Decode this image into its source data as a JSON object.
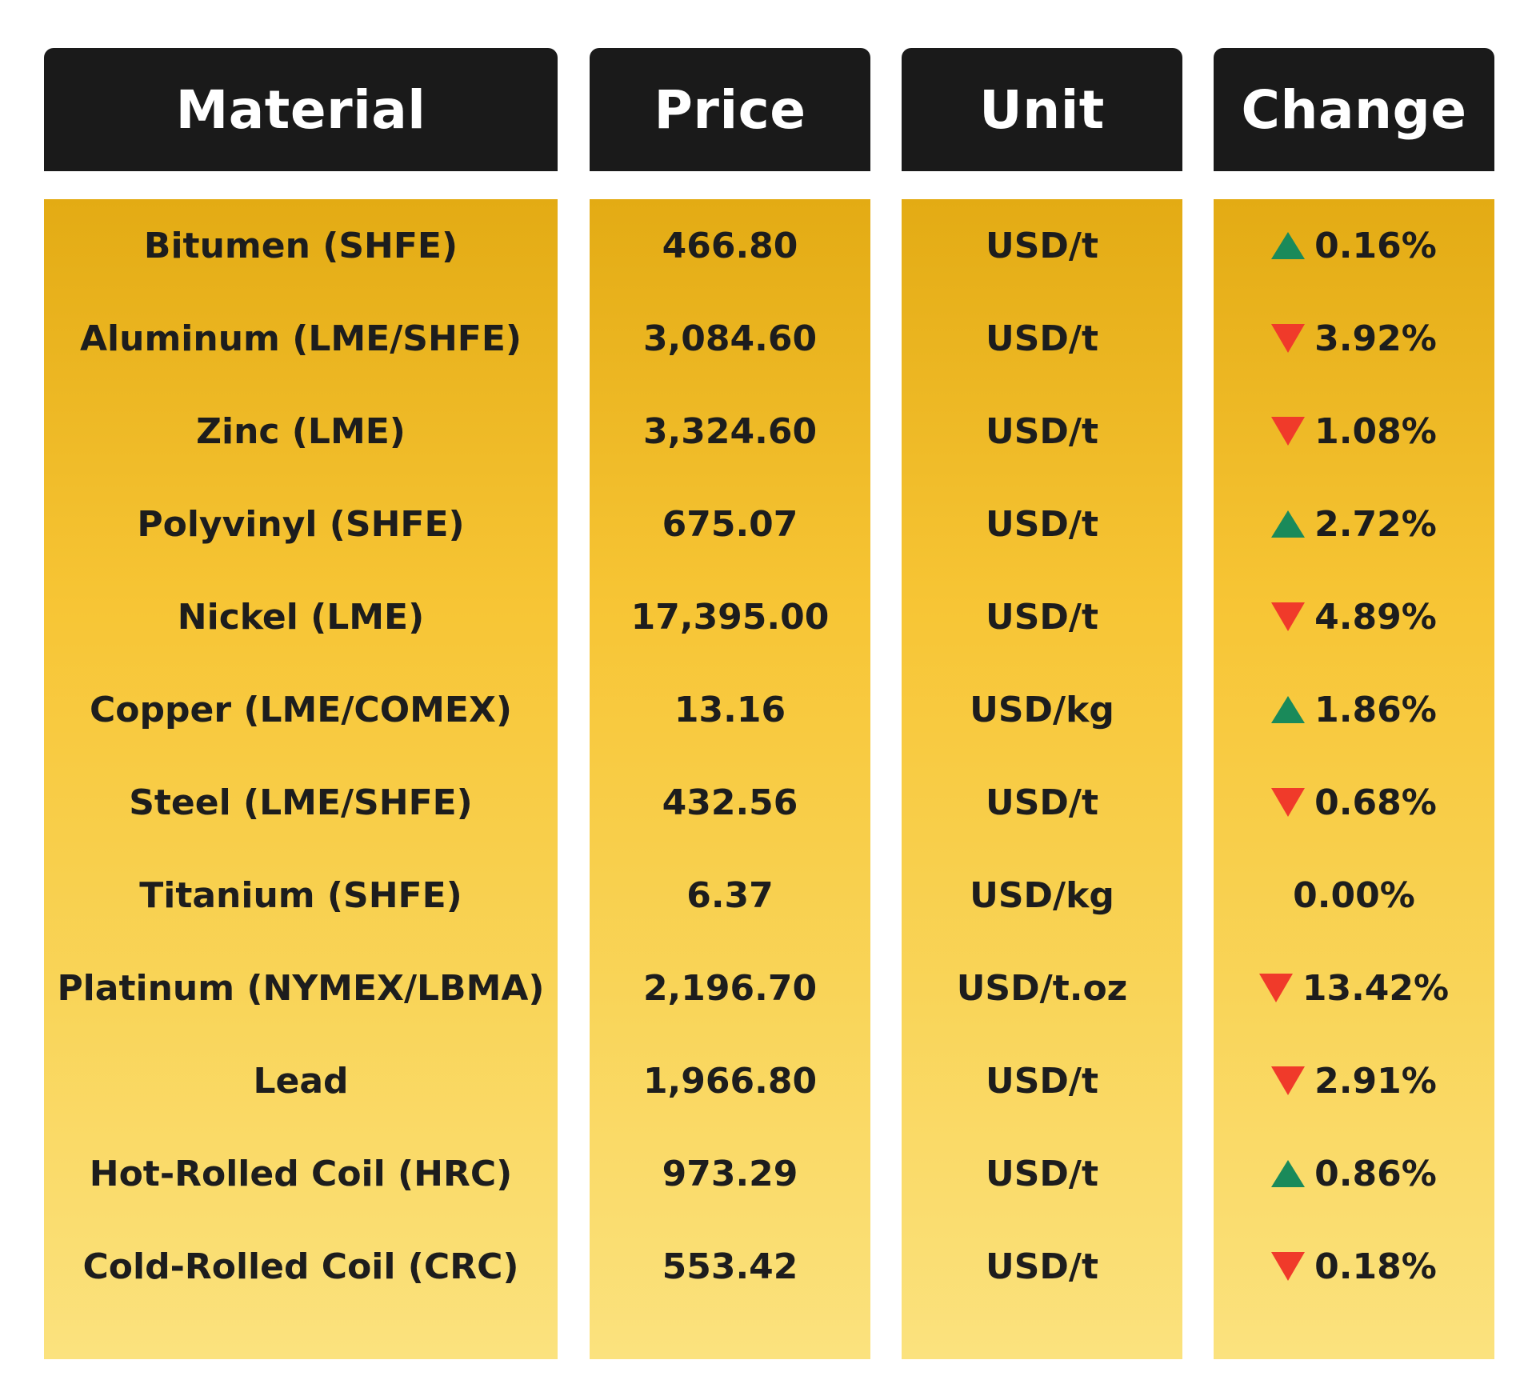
{
  "headers": {
    "material": "Material",
    "price": "Price",
    "unit": "Unit",
    "change": "Change"
  },
  "colors": {
    "header_bg": "#1a1a1a",
    "header_text": "#ffffff",
    "body_gradient_top": "#e3ab14",
    "body_gradient_bottom": "#fbe27e",
    "up": "#1a8a5a",
    "down": "#f03a2a"
  },
  "rows": [
    {
      "material": "Bitumen (SHFE)",
      "price": "466.80",
      "unit": "USD/t",
      "direction": "up",
      "change": "0.16%"
    },
    {
      "material": "Aluminum (LME/SHFE)",
      "price": "3,084.60",
      "unit": "USD/t",
      "direction": "down",
      "change": "3.92%"
    },
    {
      "material": "Zinc (LME)",
      "price": "3,324.60",
      "unit": "USD/t",
      "direction": "down",
      "change": "1.08%"
    },
    {
      "material": "Polyvinyl (SHFE)",
      "price": "675.07",
      "unit": "USD/t",
      "direction": "up",
      "change": "2.72%"
    },
    {
      "material": "Nickel (LME)",
      "price": "17,395.00",
      "unit": "USD/t",
      "direction": "down",
      "change": "4.89%"
    },
    {
      "material": "Copper (LME/COMEX)",
      "price": "13.16",
      "unit": "USD/kg",
      "direction": "up",
      "change": "1.86%"
    },
    {
      "material": "Steel (LME/SHFE)",
      "price": "432.56",
      "unit": "USD/t",
      "direction": "down",
      "change": "0.68%"
    },
    {
      "material": "Titanium (SHFE)",
      "price": "6.37",
      "unit": "USD/kg",
      "direction": "none",
      "change": "0.00%"
    },
    {
      "material": "Platinum (NYMEX/LBMA)",
      "price": "2,196.70",
      "unit": "USD/t.oz",
      "direction": "down",
      "change": "13.42%"
    },
    {
      "material": "Lead",
      "price": "1,966.80",
      "unit": "USD/t",
      "direction": "down",
      "change": "2.91%"
    },
    {
      "material": "Hot-Rolled Coil (HRC)",
      "price": "973.29",
      "unit": "USD/t",
      "direction": "up",
      "change": "0.86%"
    },
    {
      "material": "Cold-Rolled Coil (CRC)",
      "price": "553.42",
      "unit": "USD/t",
      "direction": "down",
      "change": "0.18%"
    }
  ]
}
